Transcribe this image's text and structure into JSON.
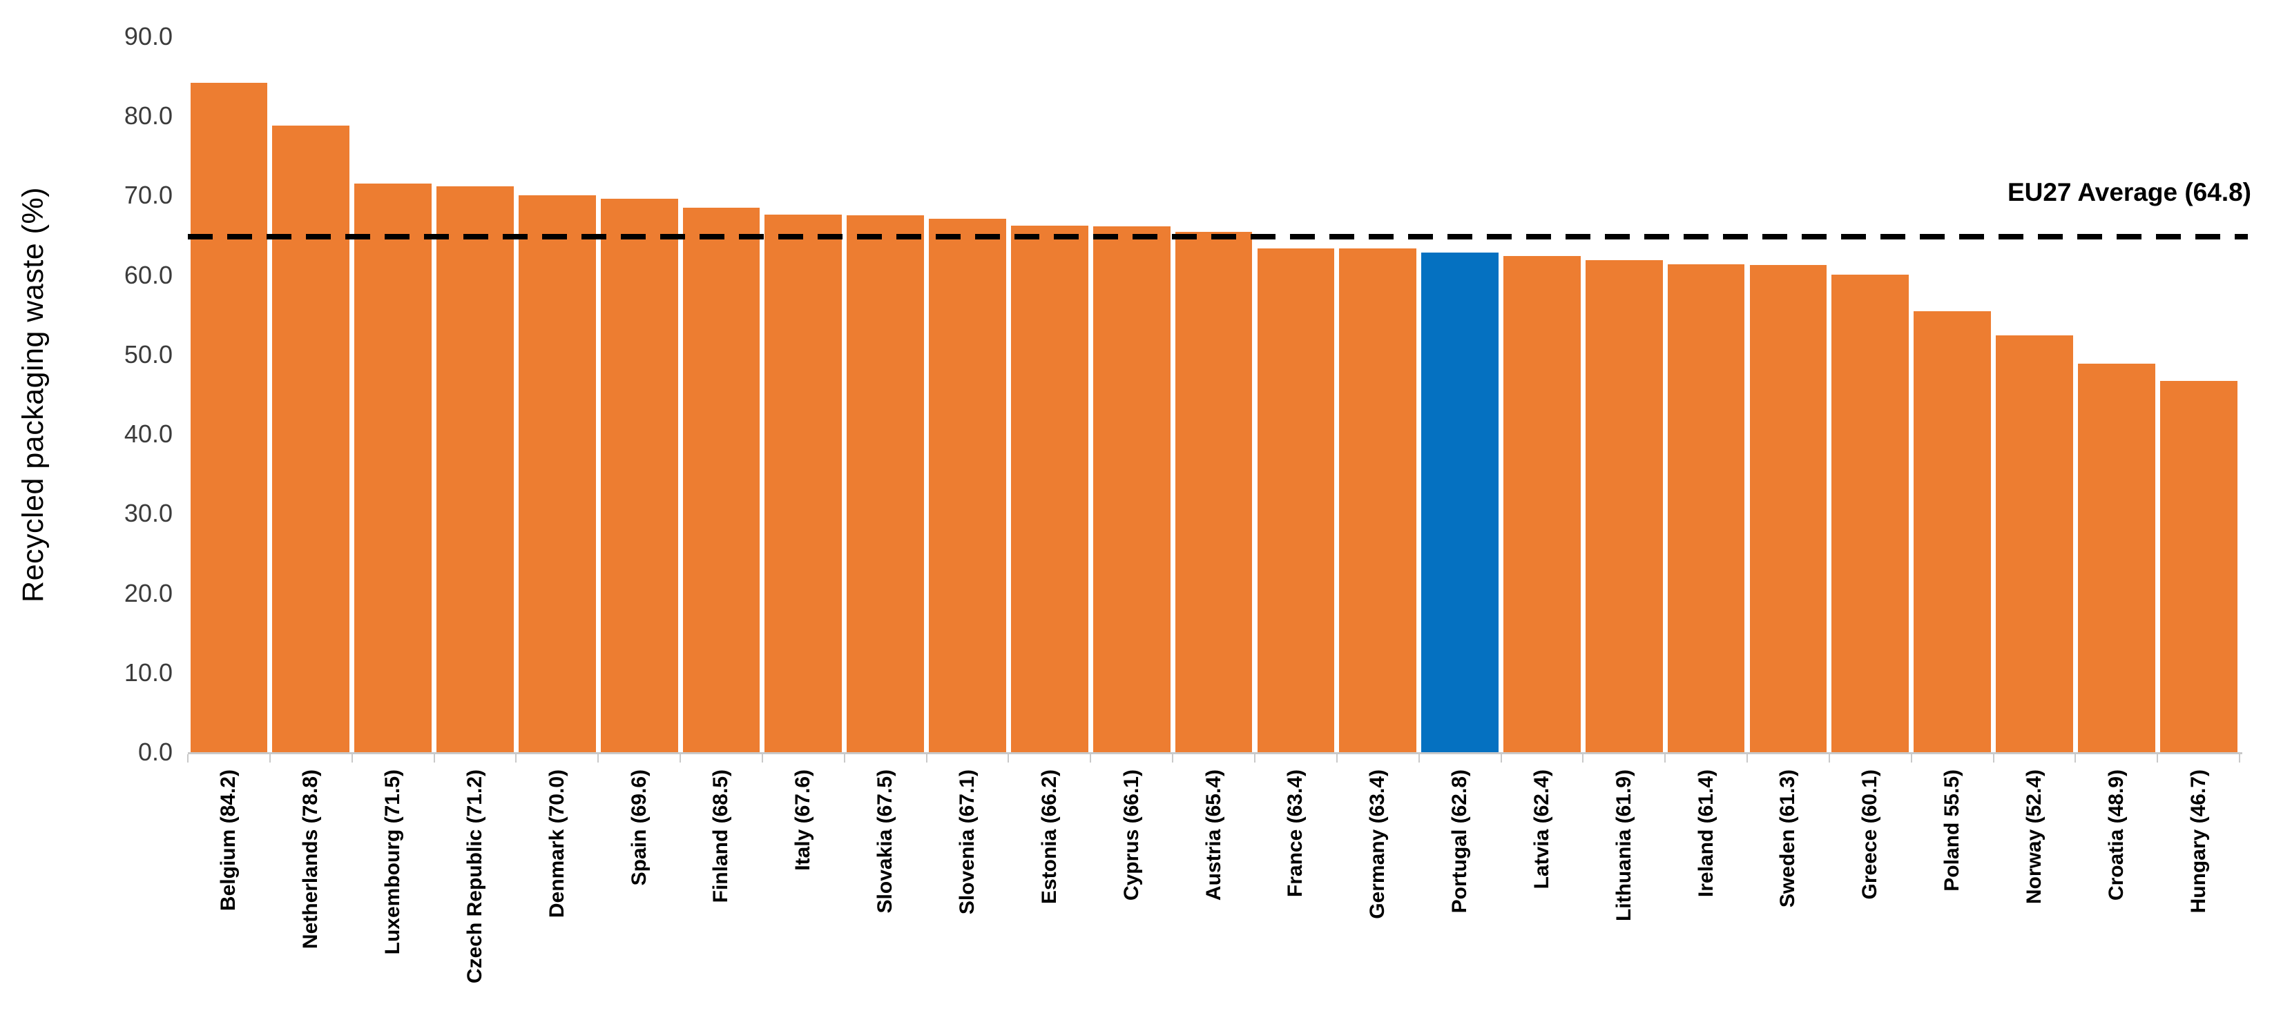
{
  "chart_data": {
    "type": "bar",
    "title": "",
    "xlabel": "",
    "ylabel": "Recycled packaging waste (%)",
    "ylim": [
      0,
      90
    ],
    "grid": false,
    "legend": "none",
    "y_ticks": [
      "90.0",
      "80.0",
      "70.0",
      "60.0",
      "50.0",
      "40.0",
      "30.0",
      "20.0",
      "10.0",
      "0.0"
    ],
    "categories": [
      "Belgium",
      "Netherlands",
      "Luxembourg",
      "Czech Republic",
      "Denmark",
      "Spain",
      "Finland",
      "Italy",
      "Slovakia",
      "Slovenia",
      "Estonia",
      "Cyprus",
      "Austria",
      "France",
      "Germany",
      "Portugal",
      "Latvia",
      "Lithuania",
      "Ireland",
      "Sweden",
      "Greece",
      "Poland",
      "Norway",
      "Croatia",
      "Hungary"
    ],
    "values": [
      84.2,
      78.8,
      71.5,
      71.2,
      70.0,
      69.6,
      68.5,
      67.6,
      67.5,
      67.1,
      66.2,
      66.1,
      65.4,
      63.4,
      63.4,
      62.8,
      62.4,
      61.9,
      61.4,
      61.3,
      60.1,
      55.5,
      52.4,
      48.9,
      46.7
    ],
    "x_tick_labels": [
      "Belgium (84.2)",
      "Netherlands (78.8)",
      "Luxembourg (71.5)",
      "Czech Republic (71.2)",
      "Denmark (70.0)",
      "Spain (69.6)",
      "Finland (68.5)",
      "Italy (67.6)",
      "Slovakia (67.5)",
      "Slovenia (67.1)",
      "Estonia (66.2)",
      "Cyprus (66.1)",
      "Austria (65.4)",
      "France (63.4)",
      "Germany (63.4)",
      "Portugal (62.8)",
      "Latvia (62.4)",
      "Lithuania (61.9)",
      "Ireland (61.4)",
      "Sweden (61.3)",
      "Greece (60.1)",
      "Poland 55.5)",
      "Norway (52.4)",
      "Croatia (48.9)",
      "Hungary (46.7)"
    ],
    "highlighted_category": "Portugal",
    "reference_line": {
      "label": "EU27 Average (64.8)",
      "value": 64.8,
      "style": "dashed",
      "color": "#000000"
    },
    "colors": {
      "bar": "#ED7D31",
      "highlight": "#0571C1",
      "axis": "#C9C9C9",
      "tick_label": "#3b3b3b"
    }
  }
}
